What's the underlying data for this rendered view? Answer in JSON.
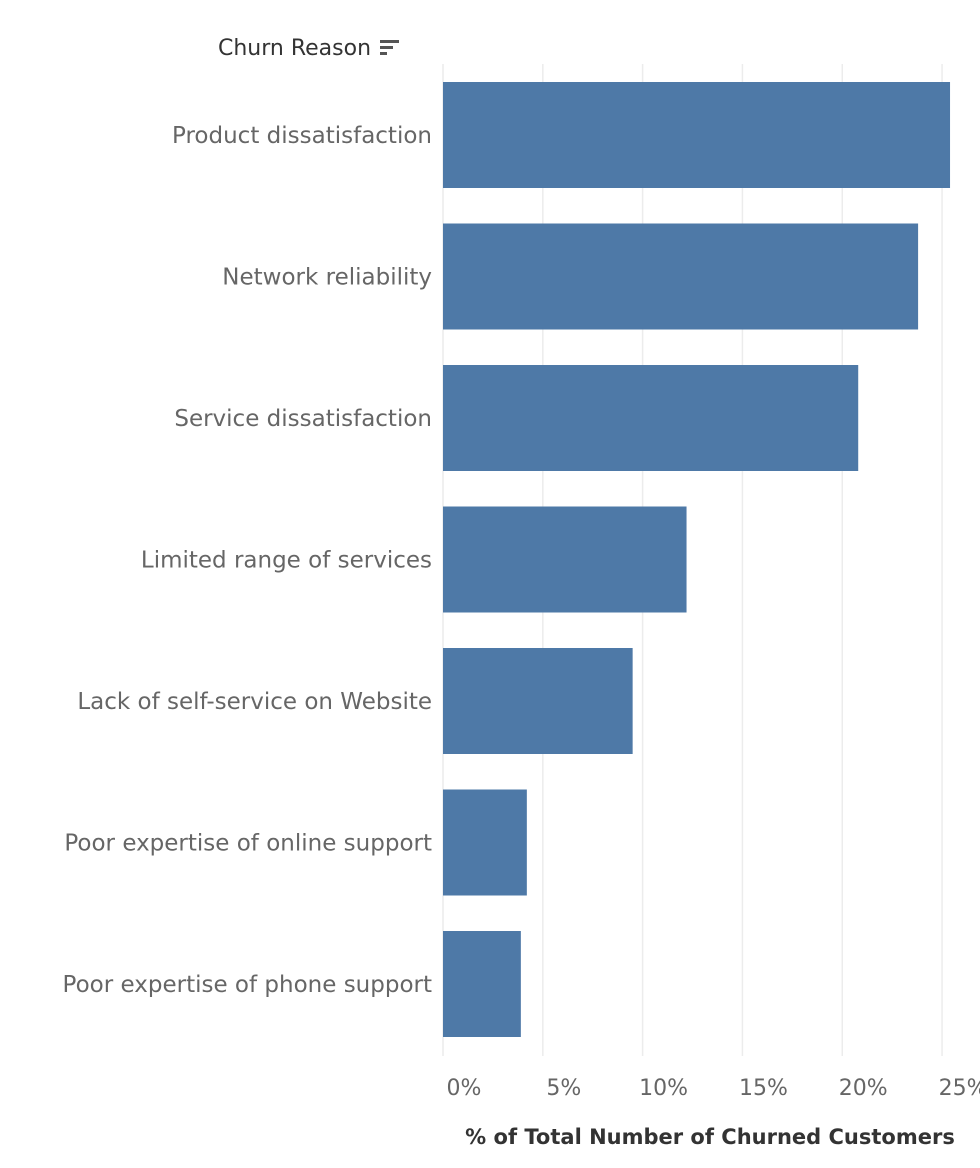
{
  "header": {
    "title": "Churn Reason",
    "sort_icon": "sort-descending-icon"
  },
  "colors": {
    "bar": "#4e79a7",
    "grid": "#ececec"
  },
  "chart_data": {
    "type": "bar",
    "orientation": "horizontal",
    "title": "",
    "ylabel": "Churn Reason",
    "xlabel": "% of Total Number of Churned Customers",
    "categories": [
      "Product dissatisfaction",
      "Network reliability",
      "Service dissatisfaction",
      "Limited range of services",
      "Lack of self-service on Website",
      "Poor expertise of online support",
      "Poor expertise of phone support"
    ],
    "values": [
      25.4,
      23.8,
      20.8,
      12.2,
      9.5,
      4.2,
      3.9
    ],
    "xlim": [
      0,
      26.5
    ],
    "xticks": [
      0,
      5,
      10,
      15,
      20,
      25
    ],
    "xtick_labels": [
      "0%",
      "5%",
      "10%",
      "15%",
      "20%",
      "25%"
    ],
    "grid": "vertical",
    "legend": "none"
  }
}
